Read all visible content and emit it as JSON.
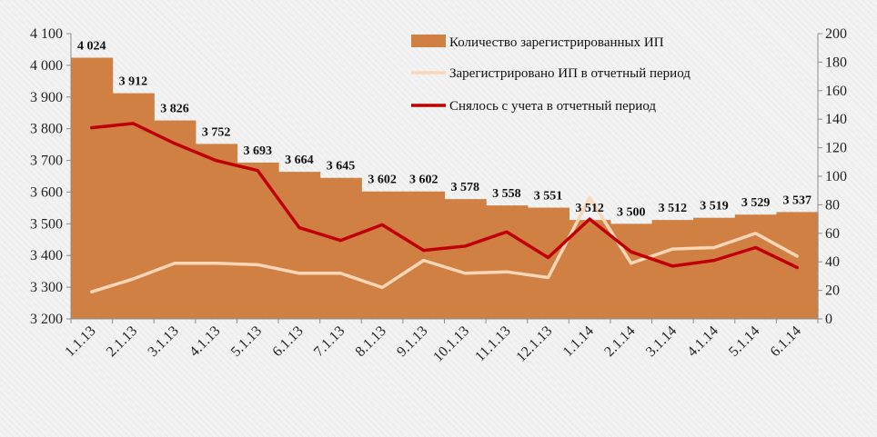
{
  "chart_data": {
    "type": "bar",
    "title": "",
    "categories": [
      "1.1.13",
      "2.1.13",
      "3.1.13",
      "4.1.13",
      "5.1.13",
      "6.1.13",
      "7.1.13",
      "8.1.13",
      "9.1.13",
      "10.1.13",
      "11.1.13",
      "12.1.13",
      "1.1.14",
      "2.1.14",
      "3.1.14",
      "4.1.14",
      "5.1.14",
      "6.1.14"
    ],
    "series": [
      {
        "name": "Количество зарегистрированных ИП",
        "type": "bar",
        "axis": "left",
        "values": [
          4024,
          3912,
          3826,
          3752,
          3693,
          3664,
          3645,
          3602,
          3602,
          3578,
          3558,
          3551,
          3512,
          3500,
          3512,
          3519,
          3529,
          3537
        ],
        "labels": [
          "4 024",
          "3 912",
          "3 826",
          "3 752",
          "3 693",
          "3 664",
          "3 645",
          "3 602",
          "3 602",
          "3 578",
          "3 558",
          "3 551",
          "3 512",
          "3 500",
          "3 512",
          "3 519",
          "3 529",
          "3 537"
        ]
      },
      {
        "name": "Зарегистрировано ИП в отчетный период",
        "type": "line",
        "axis": "right",
        "values": [
          19,
          28,
          39,
          39,
          38,
          32,
          32,
          22,
          41,
          32,
          33,
          29,
          85,
          39,
          49,
          50,
          60,
          44
        ]
      },
      {
        "name": "Снялось с учета в отчетный период",
        "type": "line",
        "axis": "right",
        "values": [
          134,
          137,
          123,
          111,
          104,
          64,
          55,
          66,
          48,
          51,
          61,
          43,
          70,
          47,
          37,
          41,
          50,
          36
        ]
      }
    ],
    "y_left": {
      "min": 3200,
      "max": 4100,
      "step": 100,
      "tick_labels": [
        "3 200",
        "3 300",
        "3 400",
        "3 500",
        "3 600",
        "3 700",
        "3 800",
        "3 900",
        "4 000",
        "4 100"
      ]
    },
    "y_right": {
      "min": 0,
      "max": 200,
      "step": 20,
      "tick_labels": [
        "0",
        "20",
        "40",
        "60",
        "80",
        "100",
        "120",
        "140",
        "160",
        "180",
        "200"
      ]
    },
    "legend_position": "top-right",
    "grid": false,
    "colors": {
      "bars": "#d08043",
      "registered_line": "#fbd6b8",
      "deregistered_line": "#c00000"
    }
  }
}
